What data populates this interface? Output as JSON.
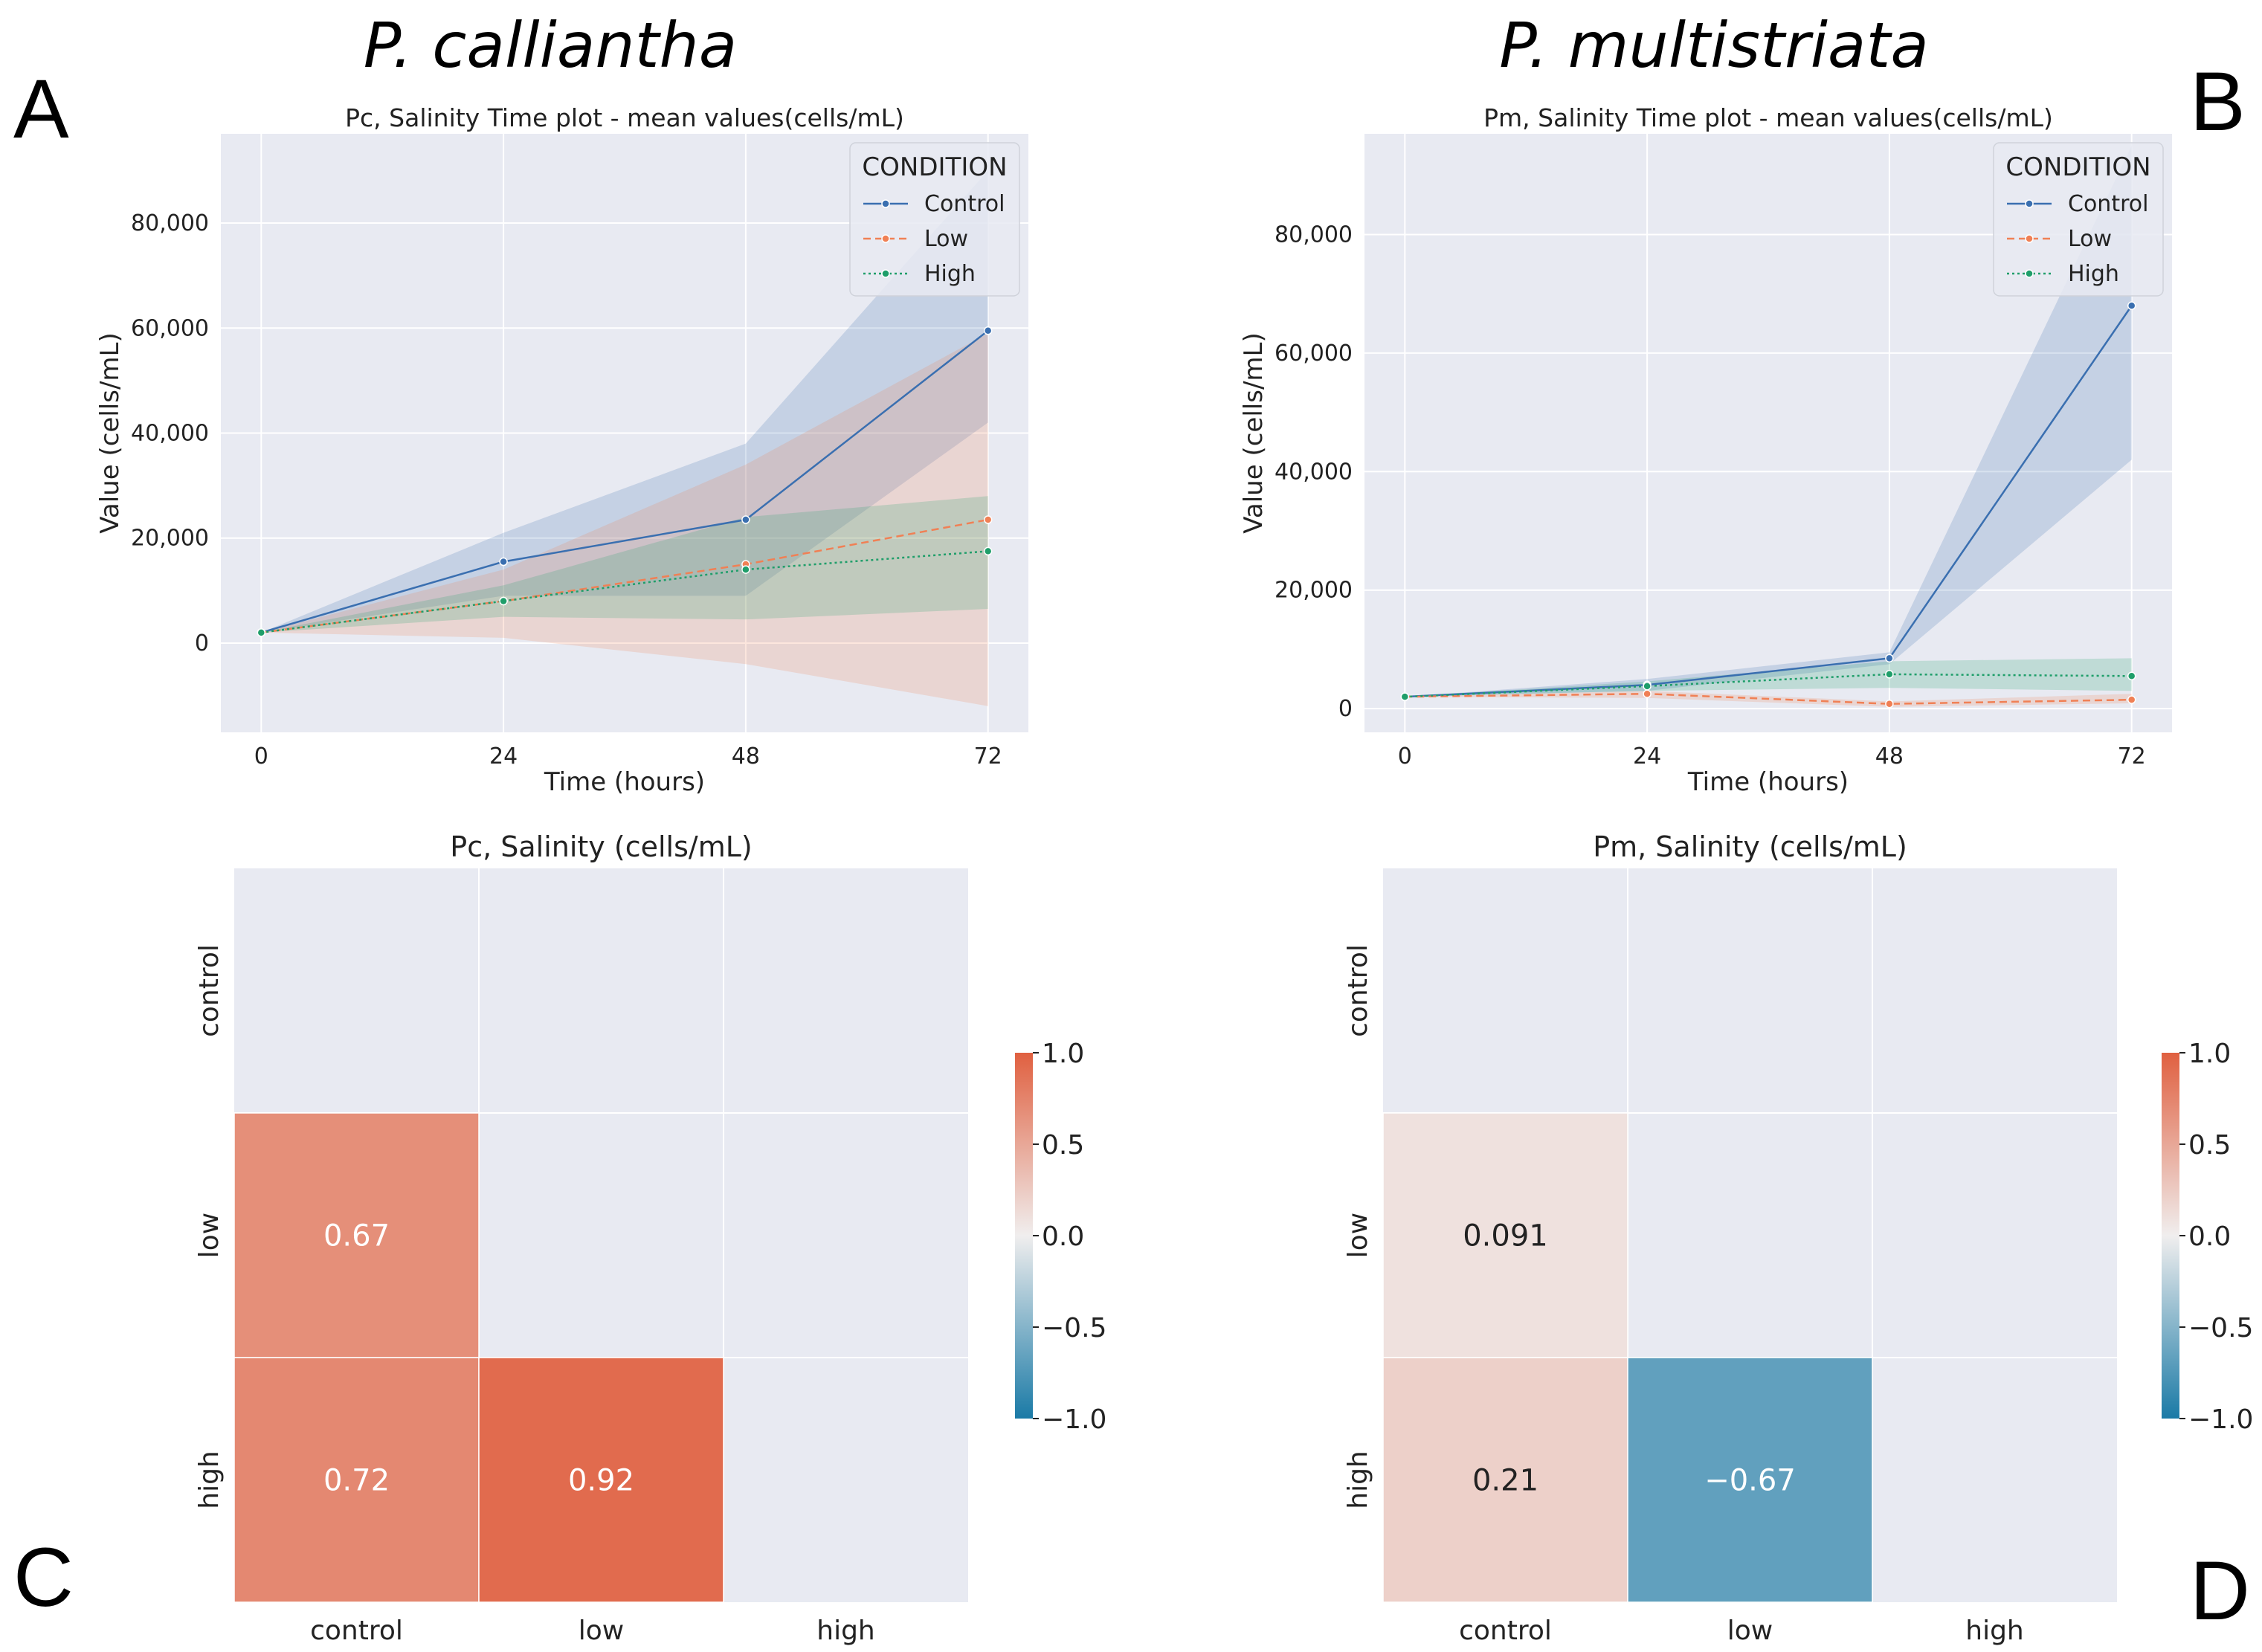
{
  "figure": {
    "species_left": "P. calliantha",
    "species_right": "P. multistriata",
    "panel_letters": [
      "A",
      "B",
      "C",
      "D"
    ]
  },
  "colors": {
    "control": "#3a6fb0",
    "low": "#f08055",
    "high": "#1f9e6a",
    "plot_bg": "#e8eaf2",
    "grid": "#ffffff",
    "heat_pos": "#e06040",
    "heat_neg": "#1a7aa6",
    "heat_mid": "#f0eeee"
  },
  "chart_data": [
    {
      "id": "A",
      "type": "line",
      "title": "Pc, Salinity Time plot - mean values(cells/mL)",
      "xlabel": "Time (hours)",
      "ylabel": "Value (cells/mL)",
      "x": [
        0,
        24,
        48,
        72
      ],
      "xlim": [
        -4,
        76
      ],
      "ylim": [
        -17000,
        97000
      ],
      "yticks": [
        0,
        20000,
        40000,
        60000,
        80000
      ],
      "ytick_labels": [
        "0",
        "20,000",
        "40,000",
        "60,000",
        "80,000"
      ],
      "xtick_labels": [
        "0",
        "24",
        "48",
        "72"
      ],
      "legend_title": "CONDITION",
      "legend_position": "top-right",
      "series": [
        {
          "name": "Control",
          "key": "control",
          "values": [
            2000,
            15500,
            23500,
            59500
          ],
          "ci_low": [
            2000,
            9000,
            9000,
            42000
          ],
          "ci_high": [
            2000,
            21000,
            38000,
            90000
          ],
          "dash": ""
        },
        {
          "name": "Low",
          "key": "low",
          "values": [
            2000,
            8000,
            15000,
            23500
          ],
          "ci_low": [
            2000,
            1000,
            -4000,
            -12000
          ],
          "ci_high": [
            2000,
            14000,
            34000,
            59000
          ],
          "dash": "10,6"
        },
        {
          "name": "High",
          "key": "high",
          "values": [
            2000,
            8000,
            14000,
            17500
          ],
          "ci_low": [
            2000,
            5000,
            4500,
            6500
          ],
          "ci_high": [
            2000,
            11000,
            24000,
            28000
          ],
          "dash": "3,4"
        }
      ]
    },
    {
      "id": "B",
      "type": "line",
      "title": "Pm, Salinity Time plot - mean values(cells/mL)",
      "xlabel": "Time (hours)",
      "ylabel": "Value (cells/mL)",
      "x": [
        0,
        24,
        48,
        72
      ],
      "xlim": [
        -4,
        76
      ],
      "ylim": [
        -4000,
        97000
      ],
      "yticks": [
        0,
        20000,
        40000,
        60000,
        80000
      ],
      "ytick_labels": [
        "0",
        "20,000",
        "40,000",
        "60,000",
        "80,000"
      ],
      "xtick_labels": [
        "0",
        "24",
        "48",
        "72"
      ],
      "legend_title": "CONDITION",
      "legend_position": "top-right",
      "series": [
        {
          "name": "Control",
          "key": "control",
          "values": [
            2000,
            4000,
            8500,
            68000
          ],
          "ci_low": [
            2000,
            3000,
            7500,
            42000
          ],
          "ci_high": [
            2000,
            5000,
            9500,
            95000
          ],
          "dash": ""
        },
        {
          "name": "Low",
          "key": "low",
          "values": [
            2000,
            2500,
            800,
            1500
          ],
          "ci_low": [
            2000,
            1800,
            300,
            900
          ],
          "ci_high": [
            2000,
            3000,
            1200,
            2500
          ],
          "dash": "10,6"
        },
        {
          "name": "High",
          "key": "high",
          "values": [
            2000,
            3800,
            5800,
            5500
          ],
          "ci_low": [
            2000,
            3000,
            3500,
            3000
          ],
          "ci_high": [
            2000,
            4600,
            8000,
            8500
          ],
          "dash": "3,4"
        }
      ]
    },
    {
      "id": "C",
      "type": "heatmap",
      "title": "Pc, Salinity (cells/mL)",
      "row_labels": [
        "control",
        "low",
        "high"
      ],
      "col_labels": [
        "control",
        "low",
        "high"
      ],
      "vmin": -1.0,
      "vmax": 1.0,
      "cbar_ticks": [
        "1.0",
        "0.5",
        "0.0",
        "−0.5",
        "−1.0"
      ],
      "cells": [
        {
          "row": 1,
          "col": 0,
          "value": 0.67,
          "label": "0.67"
        },
        {
          "row": 2,
          "col": 0,
          "value": 0.72,
          "label": "0.72"
        },
        {
          "row": 2,
          "col": 1,
          "value": 0.92,
          "label": "0.92"
        }
      ]
    },
    {
      "id": "D",
      "type": "heatmap",
      "title": "Pm, Salinity (cells/mL)",
      "row_labels": [
        "control",
        "low",
        "high"
      ],
      "col_labels": [
        "control",
        "low",
        "high"
      ],
      "vmin": -1.0,
      "vmax": 1.0,
      "cbar_ticks": [
        "1.0",
        "0.5",
        "0.0",
        "−0.5",
        "−1.0"
      ],
      "cells": [
        {
          "row": 1,
          "col": 0,
          "value": 0.091,
          "label": "0.091"
        },
        {
          "row": 2,
          "col": 0,
          "value": 0.21,
          "label": "0.21"
        },
        {
          "row": 2,
          "col": 1,
          "value": -0.67,
          "label": "−0.67"
        }
      ]
    }
  ]
}
